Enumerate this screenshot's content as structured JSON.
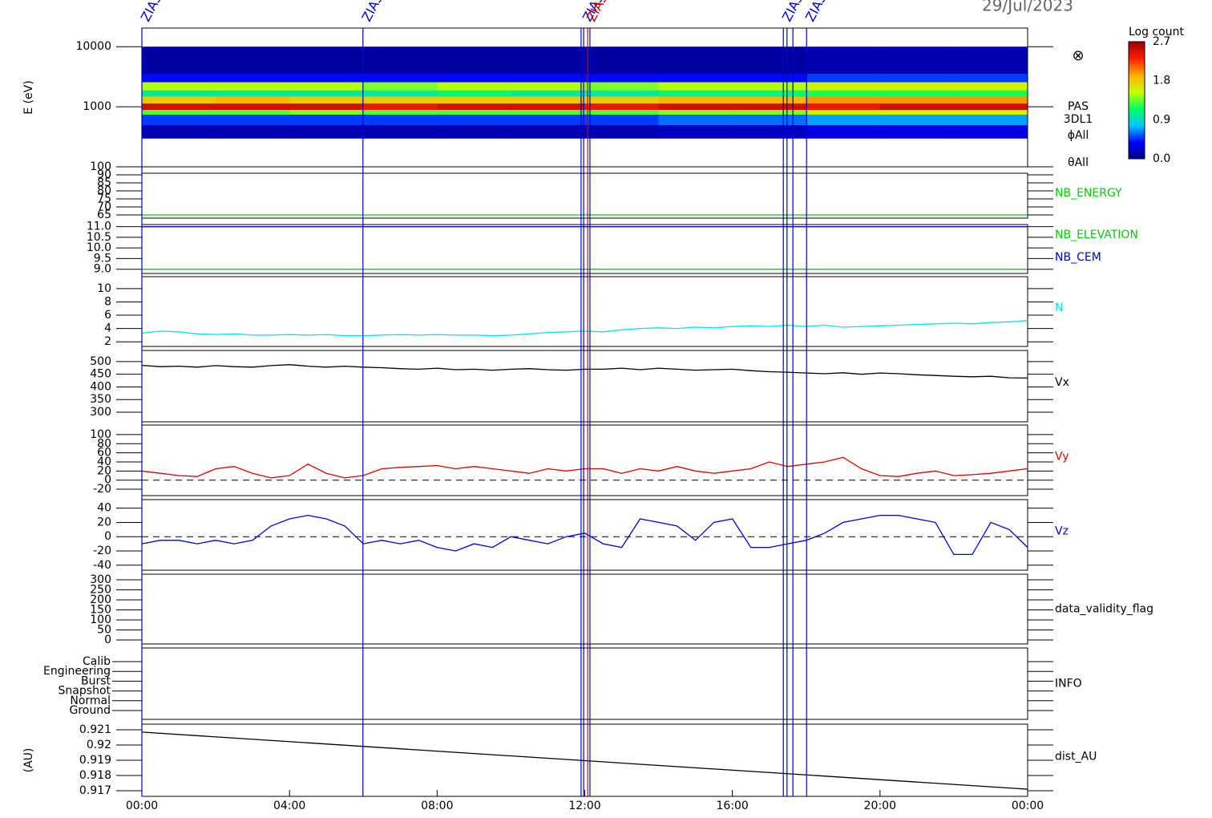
{
  "date": "29/Jul/2023",
  "time_axis": {
    "xlim": [
      0,
      24
    ],
    "xticks": [
      {
        "value": 0,
        "label": "00:00"
      },
      {
        "value": 4,
        "label": "04:00"
      },
      {
        "value": 8,
        "label": "08:00"
      },
      {
        "value": 12,
        "label": "12:00"
      },
      {
        "value": 16,
        "label": "16:00"
      },
      {
        "value": 20,
        "label": "20:00"
      },
      {
        "value": 24,
        "label": "00:00"
      }
    ]
  },
  "markers": [
    {
      "x": 0,
      "label": "ZIAS",
      "color": "#0000cc"
    },
    {
      "x": 5.99,
      "label": "ZIAS",
      "color": "#0000cc"
    },
    {
      "x": 11.9,
      "color": "#0000cc"
    },
    {
      "x": 11.97,
      "label": "ZIAS",
      "color": "#0000cc"
    },
    {
      "x": 12.08,
      "label": "ZIAS",
      "color": "#cc0000"
    },
    {
      "x": 12.14,
      "color": "#0000cc"
    },
    {
      "x": 17.38,
      "label": "ZIAS",
      "color": "#0000cc"
    },
    {
      "x": 17.48,
      "color": "#0000cc"
    },
    {
      "x": 17.64,
      "color": "#0000cc"
    },
    {
      "x": 18.01,
      "label": "ZIAS",
      "color": "#0000cc"
    }
  ],
  "colorbar": {
    "label": "Log count",
    "lim": [
      0,
      2.7
    ],
    "ticks": [
      {
        "value": 0,
        "label": "0.0"
      },
      {
        "value": 0.9,
        "label": "0.9"
      },
      {
        "value": 1.8,
        "label": "1.8"
      },
      {
        "value": 2.7,
        "label": "2.7"
      }
    ],
    "colormap": [
      "#000080",
      "#0000ff",
      "#00c8ff",
      "#00ff60",
      "#c8ff00",
      "#ffb000",
      "#ff2000",
      "#a00000"
    ]
  },
  "chart_data": [
    {
      "type": "heatmap",
      "ylabel": "E (eV)",
      "log": true,
      "ylim": [
        100,
        20400
      ],
      "yticks": [
        100,
        1000,
        10000
      ],
      "labels": [
        "PAS",
        "3DL1",
        "ϕAll",
        "θAll"
      ],
      "symbol": "⊗",
      "x_edges": [
        0,
        2,
        4,
        6,
        8,
        10,
        12,
        14,
        16,
        18,
        20,
        22,
        24
      ],
      "y_edges": [
        300,
        500,
        750,
        900,
        1150,
        1500,
        1900,
        2600,
        3600,
        10000
      ],
      "values": [
        [
          0.15,
          0.5,
          1.3,
          2.5,
          1.8,
          1.0,
          1.5,
          0.4,
          0.1
        ],
        [
          0.15,
          0.5,
          1.3,
          2.5,
          1.9,
          1.0,
          1.5,
          0.4,
          0.1
        ],
        [
          0.15,
          0.5,
          1.4,
          2.5,
          1.8,
          1.0,
          1.5,
          0.4,
          0.1
        ],
        [
          0.15,
          0.5,
          1.3,
          2.4,
          1.8,
          1.0,
          1.4,
          0.4,
          0.1
        ],
        [
          0.15,
          0.5,
          1.3,
          2.5,
          1.8,
          1.1,
          1.5,
          0.4,
          0.1
        ],
        [
          0.15,
          0.5,
          1.3,
          2.5,
          1.8,
          1.0,
          1.5,
          0.4,
          0.1
        ],
        [
          0.15,
          0.5,
          1.3,
          2.4,
          1.8,
          1.0,
          1.4,
          0.4,
          0.1
        ],
        [
          0.2,
          0.6,
          1.4,
          2.5,
          1.9,
          1.1,
          1.5,
          0.4,
          0.1
        ],
        [
          0.2,
          0.6,
          1.4,
          2.5,
          1.9,
          1.1,
          1.5,
          0.4,
          0.1
        ],
        [
          0.3,
          0.7,
          1.6,
          2.4,
          2.0,
          1.2,
          1.6,
          0.5,
          0.15
        ],
        [
          0.3,
          0.7,
          1.6,
          2.5,
          2.0,
          1.2,
          1.6,
          0.5,
          0.15
        ],
        [
          0.3,
          0.7,
          1.6,
          2.5,
          2.0,
          1.2,
          1.6,
          0.5,
          0.15
        ]
      ]
    },
    {
      "type": "line",
      "ylim": [
        63,
        91
      ],
      "yticks": [
        65,
        70,
        75,
        80,
        85,
        90
      ],
      "series": [
        {
          "name": "NB_ENERGY",
          "color": "#00cc00",
          "x": [
            0,
            24
          ],
          "values": [
            65,
            65
          ]
        }
      ]
    },
    {
      "type": "line",
      "ylim": [
        8.8,
        11.1
      ],
      "yticks": [
        {
          "value": 9,
          "label": "9.0"
        },
        9.5,
        {
          "value": 10,
          "label": "10.0"
        },
        10.5,
        {
          "value": 11,
          "label": "11.0"
        }
      ],
      "series": [
        {
          "name": "NB_ELEVATION",
          "color": "#00cc00",
          "x": [
            0,
            24
          ],
          "values": [
            9,
            9
          ]
        },
        {
          "name": "NB_CEM",
          "color": "#0000cc",
          "x": [
            0,
            24
          ],
          "values": [
            11,
            11
          ]
        }
      ]
    },
    {
      "type": "line",
      "ylim": [
        1.3,
        11.8
      ],
      "yticks": [
        2,
        4,
        6,
        8,
        10
      ],
      "series": [
        {
          "name": "N",
          "color": "#00e5ee",
          "x": [
            0,
            0.5,
            1,
            1.5,
            2,
            2.5,
            3,
            3.5,
            4,
            4.5,
            5,
            5.5,
            6,
            6.5,
            7,
            7.5,
            8,
            8.5,
            9,
            9.5,
            10,
            10.5,
            11,
            11.5,
            12,
            12.5,
            13,
            13.5,
            14,
            14.5,
            15,
            15.5,
            16,
            16.5,
            17,
            17.5,
            18,
            18.5,
            19,
            19.5,
            20,
            20.5,
            21,
            21.5,
            22,
            22.5,
            23,
            23.5,
            24
          ],
          "values": [
            3.3,
            3.6,
            3.5,
            3.2,
            3.1,
            3.2,
            3.0,
            3.0,
            3.1,
            3.0,
            3.1,
            2.9,
            2.9,
            3.0,
            3.1,
            3.0,
            3.1,
            3.0,
            3.0,
            2.9,
            3.0,
            3.2,
            3.4,
            3.5,
            3.6,
            3.5,
            3.8,
            4.0,
            4.1,
            4.0,
            4.2,
            4.1,
            4.3,
            4.4,
            4.3,
            4.5,
            4.3,
            4.5,
            4.2,
            4.3,
            4.4,
            4.5,
            4.6,
            4.7,
            4.8,
            4.7,
            4.9,
            5.0,
            5.2
          ]
        }
      ]
    },
    {
      "type": "line",
      "ylim": [
        262,
        544
      ],
      "yticks": [
        300,
        350,
        400,
        450,
        500
      ],
      "series": [
        {
          "name": "Vx",
          "color": "#000000",
          "x": [
            0,
            0.5,
            1,
            1.5,
            2,
            2.5,
            3,
            3.5,
            4,
            4.5,
            5,
            5.5,
            6,
            6.5,
            7,
            7.5,
            8,
            8.5,
            9,
            9.5,
            10,
            10.5,
            11,
            11.5,
            12,
            12.5,
            13,
            13.5,
            14,
            14.5,
            15,
            15.5,
            16,
            16.5,
            17,
            17.5,
            18,
            18.5,
            19,
            19.5,
            20,
            20.5,
            21,
            21.5,
            22,
            22.5,
            23,
            23.5,
            24
          ],
          "values": [
            485,
            480,
            482,
            478,
            484,
            480,
            478,
            484,
            488,
            482,
            478,
            482,
            478,
            476,
            472,
            470,
            474,
            468,
            470,
            466,
            470,
            472,
            468,
            466,
            470,
            470,
            474,
            468,
            474,
            470,
            466,
            468,
            470,
            464,
            460,
            458,
            455,
            452,
            456,
            450,
            455,
            452,
            448,
            445,
            442,
            440,
            442,
            436,
            435
          ]
        }
      ]
    },
    {
      "type": "line",
      "ylim": [
        -34,
        121
      ],
      "yticks": [
        -20,
        0,
        20,
        40,
        60,
        80,
        100
      ],
      "zero_line": true,
      "series": [
        {
          "name": "Vy",
          "color": "#dd0000",
          "x": [
            0,
            0.5,
            1,
            1.5,
            2,
            2.5,
            3,
            3.5,
            4,
            4.5,
            5,
            5.5,
            6,
            6.5,
            7,
            7.5,
            8,
            8.5,
            9,
            9.5,
            10,
            10.5,
            11,
            11.5,
            12,
            12.5,
            13,
            13.5,
            14,
            14.5,
            15,
            15.5,
            16,
            16.5,
            17,
            17.5,
            18,
            18.5,
            19,
            19.5,
            20,
            20.5,
            21,
            21.5,
            22,
            22.5,
            23,
            23.5,
            24
          ],
          "values": [
            20,
            15,
            10,
            8,
            25,
            30,
            15,
            5,
            10,
            35,
            15,
            5,
            10,
            25,
            28,
            30,
            32,
            25,
            30,
            25,
            20,
            15,
            25,
            20,
            25,
            25,
            15,
            25,
            20,
            30,
            20,
            15,
            20,
            25,
            40,
            30,
            35,
            40,
            50,
            25,
            10,
            8,
            15,
            20,
            10,
            12,
            15,
            20,
            25
          ]
        }
      ]
    },
    {
      "type": "line",
      "ylim": [
        -47,
        52
      ],
      "yticks": [
        -40,
        -20,
        0,
        20,
        40
      ],
      "zero_line": true,
      "series": [
        {
          "name": "Vz",
          "color": "#0000dd",
          "x": [
            0,
            0.5,
            1,
            1.5,
            2,
            2.5,
            3,
            3.5,
            4,
            4.5,
            5,
            5.5,
            6,
            6.5,
            7,
            7.5,
            8,
            8.5,
            9,
            9.5,
            10,
            10.5,
            11,
            11.5,
            12,
            12.5,
            13,
            13.5,
            14,
            14.5,
            15,
            15.5,
            16,
            16.5,
            17,
            17.5,
            18,
            18.5,
            19,
            19.5,
            20,
            20.5,
            21,
            21.5,
            22,
            22.5,
            23,
            23.5,
            24
          ],
          "values": [
            -10,
            -5,
            -5,
            -10,
            -5,
            -10,
            -5,
            15,
            25,
            30,
            25,
            15,
            -10,
            -5,
            -10,
            -5,
            -15,
            -20,
            -10,
            -15,
            0,
            -5,
            -10,
            0,
            5,
            -10,
            -15,
            25,
            20,
            15,
            -5,
            20,
            25,
            -15,
            -15,
            -10,
            -5,
            5,
            20,
            25,
            30,
            30,
            25,
            20,
            -25,
            -25,
            20,
            10,
            -15
          ]
        }
      ]
    },
    {
      "type": "line",
      "ylim": [
        -20,
        328
      ],
      "yticks": [
        0,
        50,
        100,
        150,
        200,
        250,
        300
      ],
      "label": "data_validity_flag"
    },
    {
      "type": "categorical",
      "ycategories": [
        "Calib",
        "Engineering",
        "Burst",
        "Snapshot",
        "Normal",
        "Ground"
      ],
      "label": "INFO"
    },
    {
      "type": "line",
      "ylabel": "(AU)",
      "ylim": [
        0.91663,
        0.92137
      ],
      "yticks": [
        0.917,
        0.918,
        0.919,
        0.92,
        0.921
      ],
      "series": [
        {
          "name": "dist_AU",
          "color": "#000000",
          "x": [
            0,
            24
          ],
          "values": [
            0.92085,
            0.9171
          ]
        }
      ]
    }
  ]
}
